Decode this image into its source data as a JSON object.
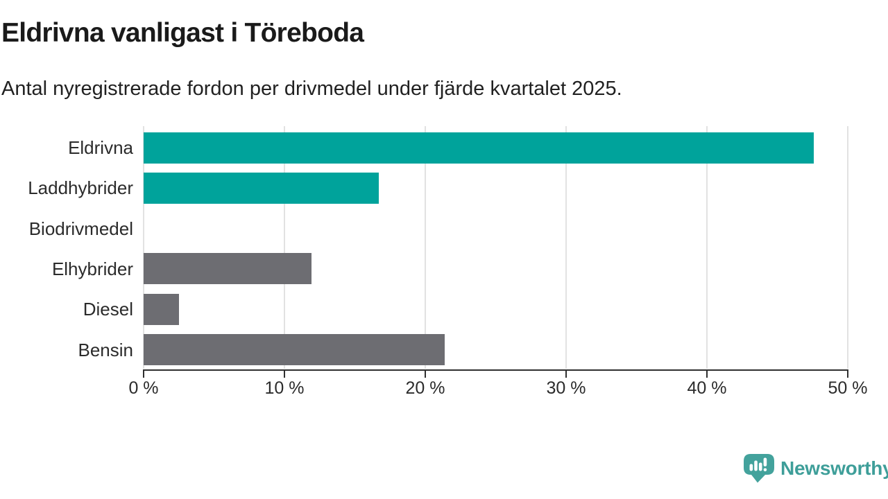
{
  "header": {
    "title": "Eldrivna vanligast i Töreboda",
    "subtitle": "Antal nyregistrerade fordon per drivmedel under fjärde kvartalet 2025."
  },
  "chart_data": {
    "type": "bar",
    "orientation": "horizontal",
    "title": "Eldrivna vanligast i Töreboda",
    "subtitle": "Antal nyregistrerade fordon per drivmedel under fjärde kvartalet 2025.",
    "categories": [
      "Eldrivna",
      "Laddhybrider",
      "Biodrivmedel",
      "Elhybrider",
      "Diesel",
      "Bensin"
    ],
    "values": [
      47.6,
      16.7,
      0,
      11.9,
      2.5,
      21.4
    ],
    "unit": "%",
    "xlabel": "",
    "ylabel": "",
    "xlim": [
      0,
      50
    ],
    "x_tick_values": [
      0,
      10,
      20,
      30,
      40,
      50
    ],
    "x_tick_labels": [
      "0 %",
      "10 %",
      "20 %",
      "30 %",
      "40 %",
      "50 %"
    ],
    "grid": true,
    "legend": "none",
    "bar_colors": [
      "#00a39b",
      "#00a39b",
      "#6d6d72",
      "#6d6d72",
      "#6d6d72",
      "#6d6d72"
    ]
  },
  "colors": {
    "accent_teal": "#00a39b",
    "neutral_gray": "#6d6d72",
    "gridline": "#e2e2e2",
    "axis": "#2f2f2f",
    "text_dark": "#1a1a1a",
    "logo_teal": "#43a29c"
  },
  "footer": {
    "brand": "Newsworthy",
    "logo_icon": "newsworthy-speech-bubble-bar-chart-icon"
  }
}
